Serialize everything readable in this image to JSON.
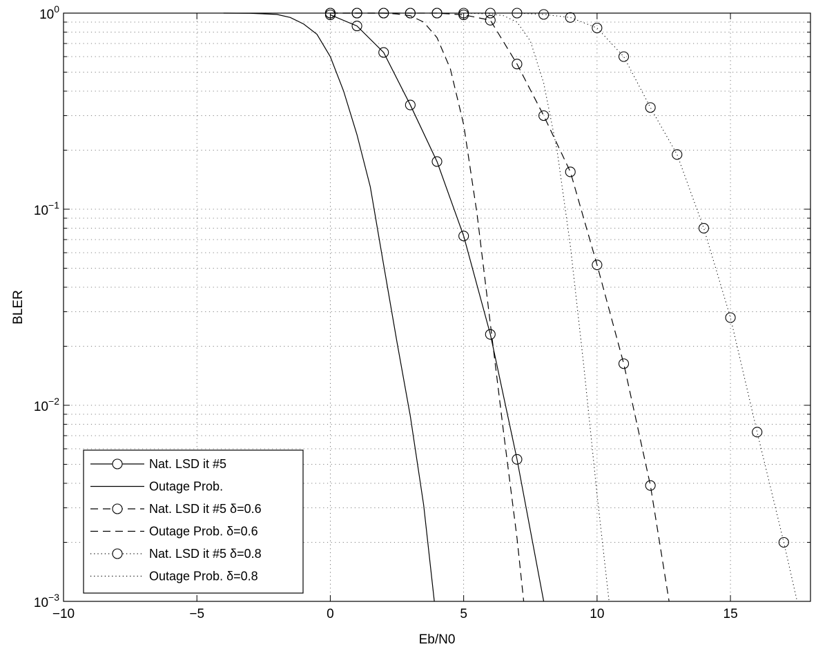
{
  "chart_data": {
    "type": "line",
    "xlabel": "Eb/N0",
    "ylabel": "BLER",
    "xlim": [
      -10,
      18
    ],
    "ylim": [
      0.001,
      1
    ],
    "y_scale": "log",
    "grid": true,
    "legend_position": "bottom-left",
    "x_ticks": [
      "−10",
      "−5",
      "0",
      "5",
      "10",
      "15"
    ],
    "y_ticks": [
      {
        "base": "10",
        "exp": "0"
      },
      {
        "base": "10",
        "exp": "−1"
      },
      {
        "base": "10",
        "exp": "−2"
      },
      {
        "base": "10",
        "exp": "−3"
      }
    ],
    "series": [
      {
        "name": "Nat. LSD it #5",
        "style": "solid",
        "marker": "circle",
        "x": [
          0,
          1,
          2,
          3,
          4,
          5,
          6,
          7,
          8
        ],
        "y": [
          0.98,
          0.86,
          0.63,
          0.34,
          0.175,
          0.073,
          0.023,
          0.0053,
          0.001
        ]
      },
      {
        "name": "Outage Prob.",
        "style": "solid",
        "marker": "none",
        "x": [
          -4,
          -3,
          -2,
          -1.5,
          -1,
          -0.5,
          0,
          0.5,
          1,
          1.5,
          2,
          2.5,
          3,
          3.5,
          3.9
        ],
        "y": [
          1.0,
          0.998,
          0.985,
          0.95,
          0.88,
          0.78,
          0.6,
          0.4,
          0.24,
          0.13,
          0.052,
          0.021,
          0.0088,
          0.0031,
          0.001
        ]
      },
      {
        "name": "Nat. LSD it #5 δ=0.6",
        "style": "dashed",
        "marker": "circle",
        "x": [
          0,
          1,
          2,
          3,
          4,
          5,
          6,
          7,
          8,
          9,
          10,
          11,
          12,
          12.7
        ],
        "y": [
          1.0,
          1.0,
          1.0,
          1.0,
          1.0,
          0.98,
          0.92,
          0.55,
          0.3,
          0.155,
          0.052,
          0.0163,
          0.0039,
          0.001
        ]
      },
      {
        "name": "Outage Prob. δ=0.6",
        "style": "dashed",
        "marker": "none",
        "x": [
          0,
          1,
          2,
          2.5,
          3,
          3.5,
          4,
          4.5,
          5,
          5.5,
          6,
          6.5,
          7,
          7.25
        ],
        "y": [
          1.0,
          1.0,
          1.0,
          0.99,
          0.97,
          0.9,
          0.75,
          0.52,
          0.27,
          0.095,
          0.026,
          0.0072,
          0.0021,
          0.001
        ]
      },
      {
        "name": "Nat. LSD it #5 δ=0.8",
        "style": "dotted",
        "marker": "circle",
        "x": [
          0,
          1,
          2,
          3,
          4,
          5,
          6,
          7,
          8,
          9,
          10,
          11,
          12,
          13,
          14,
          15,
          16,
          17,
          17.5
        ],
        "y": [
          1.0,
          1.0,
          1.0,
          1.0,
          1.0,
          1.0,
          1.0,
          1.0,
          0.985,
          0.95,
          0.84,
          0.6,
          0.33,
          0.19,
          0.08,
          0.028,
          0.0073,
          0.002,
          0.001
        ]
      },
      {
        "name": "Outage Prob. δ=0.8",
        "style": "dotted",
        "marker": "none",
        "x": [
          5,
          6,
          6.5,
          7,
          7.5,
          8,
          8.5,
          9,
          9.5,
          10,
          10.45
        ],
        "y": [
          1.0,
          0.99,
          0.97,
          0.9,
          0.72,
          0.44,
          0.2,
          0.065,
          0.016,
          0.0035,
          0.001
        ]
      }
    ]
  }
}
